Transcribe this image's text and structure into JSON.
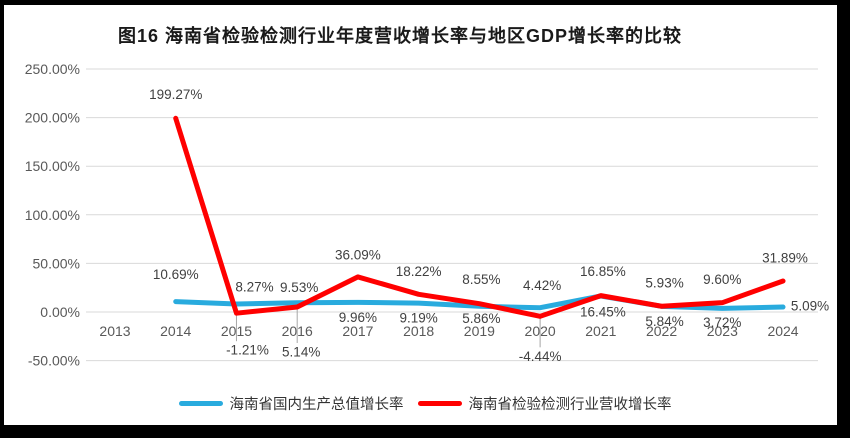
{
  "figure": {
    "title": "图16 海南省检验检测行业年度营收增长率与地区GDP增长率的比较"
  },
  "legend": [
    {
      "label": "海南省国内生产总值增长率",
      "color": "#29ABDE"
    },
    {
      "label": "海南省检验检测行业营收增长率",
      "color": "#FF0000"
    }
  ],
  "chart_data": {
    "type": "line",
    "title": "图16 海南省检验检测行业年度营收增长率与地区GDP增长率的比较",
    "categories": [
      "2013",
      "2014",
      "2015",
      "2016",
      "2017",
      "2018",
      "2019",
      "2020",
      "2021",
      "2022",
      "2023",
      "2024"
    ],
    "series": [
      {
        "name": "海南省国内生产总值增长率",
        "color": "#29ABDE",
        "values": [
          null,
          10.69,
          8.27,
          9.53,
          9.96,
          9.19,
          5.86,
          4.42,
          16.45,
          5.84,
          3.72,
          5.09
        ]
      },
      {
        "name": "海南省检验检测行业营收增长率",
        "color": "#FF0000",
        "values": [
          null,
          199.27,
          -1.21,
          5.14,
          36.09,
          18.22,
          8.55,
          -4.44,
          16.85,
          5.93,
          9.6,
          31.89
        ]
      }
    ],
    "y_axis": {
      "ticks": [
        250,
        200,
        150,
        100,
        50,
        0,
        -50
      ],
      "tick_format": "0.00%",
      "min": -50,
      "max": 250
    },
    "x_axis": {
      "label": ""
    },
    "grid": true,
    "data_labels": true,
    "data_label_format": "0.00%",
    "legend_position": "bottom"
  },
  "colors": {
    "gridline": "#D9D9D9",
    "leader_line": "#A6A6A6",
    "tick_text": "#595959",
    "data_label_text": "#404040",
    "frame": "#000000",
    "background": "#FFFFFF"
  }
}
